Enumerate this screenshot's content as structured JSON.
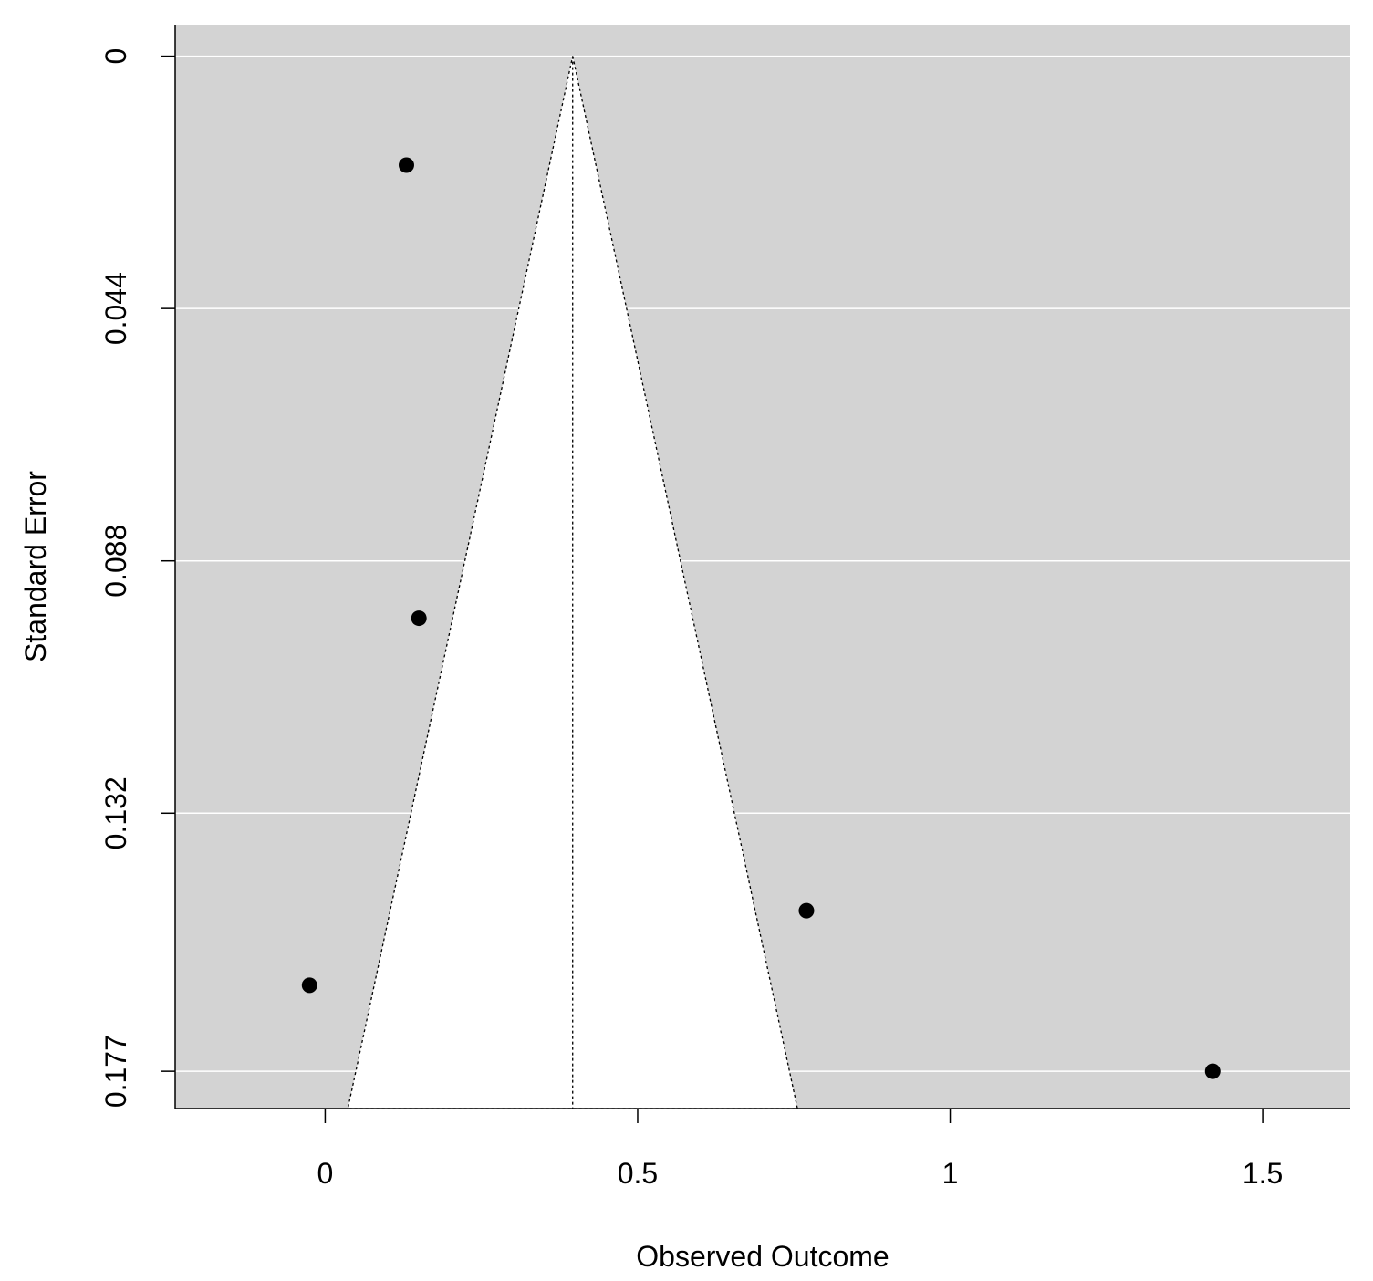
{
  "chart_data": {
    "type": "scatter",
    "subtype": "funnel-plot",
    "title": "",
    "xlabel": "Observed Outcome",
    "ylabel": "Standard Error",
    "xlim": [
      -0.24,
      1.64
    ],
    "ylim": [
      0.1835,
      -0.0055
    ],
    "y_axis_reversed": true,
    "x_ticks": [
      {
        "value": 0,
        "label": "0"
      },
      {
        "value": 0.5,
        "label": "0.5"
      },
      {
        "value": 1,
        "label": "1"
      },
      {
        "value": 1.5,
        "label": "1.5"
      }
    ],
    "y_ticks": [
      {
        "value": 0,
        "label": "0"
      },
      {
        "value": 0.044,
        "label": "0.044"
      },
      {
        "value": 0.088,
        "label": "0.088"
      },
      {
        "value": 0.132,
        "label": "0.132"
      },
      {
        "value": 0.177,
        "label": "0.177"
      }
    ],
    "grid": "horizontal",
    "pooled_estimate": 0.396,
    "funnel": {
      "apex_x": 0.396,
      "apex_se": 0,
      "z": 1.96
    },
    "points": [
      {
        "x": 0.13,
        "se": 0.019
      },
      {
        "x": 0.15,
        "se": 0.098
      },
      {
        "x": -0.025,
        "se": 0.162
      },
      {
        "x": 0.77,
        "se": 0.149
      },
      {
        "x": 1.42,
        "se": 0.177
      }
    ],
    "colors": {
      "panel_background": "#d3d3d3",
      "funnel_fill": "#ffffff",
      "grid": "#ffffff",
      "points": "#000000"
    }
  }
}
